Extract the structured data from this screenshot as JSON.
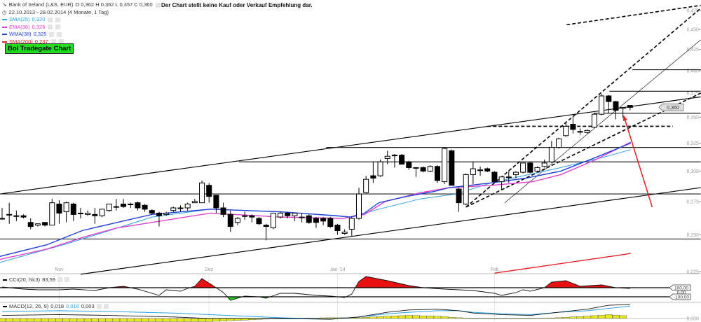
{
  "header": {
    "instrument": "Bank of Ireland (L&S, EUR)",
    "ohlc": "O 0,362  H 0,362  L 0,357  C 0,360",
    "range": "22.10.2013 - 28.02.2014 (4 Monate, 1 Tag)",
    "notice": "Der Chart stellt keine Kauf oder Verkauf Empfehlung dar.",
    "banner_button": "BoI Tradegate Chart"
  },
  "legend": [
    {
      "label": "SMA(25)",
      "value": "0,320",
      "color": "#2aa0e0"
    },
    {
      "label": "EMA(38)",
      "value": "0,326",
      "color": "#e040d0"
    },
    {
      "label": "WMA(38)",
      "value": "0,325",
      "color": "#2040d8"
    },
    {
      "label": "SMA(200)",
      "value": "0,237",
      "color": "#e02020"
    }
  ],
  "chart_data": {
    "type": "candlestick",
    "y_scale": "log",
    "ylim": [
      0.225,
      0.475
    ],
    "y_ticks": [
      {
        "value": 0.475,
        "label": "0,475"
      },
      {
        "value": 0.45,
        "label": "0,450"
      },
      {
        "value": 0.425,
        "label": "0,425"
      },
      {
        "value": 0.4,
        "label": "0,400"
      },
      {
        "value": 0.375,
        "label": "0,375"
      },
      {
        "value": 0.35,
        "label": "0,350"
      },
      {
        "value": 0.325,
        "label": "0,325"
      },
      {
        "value": 0.3,
        "label": "0,300"
      },
      {
        "value": 0.275,
        "label": "0,275"
      },
      {
        "value": 0.25,
        "label": "0,250"
      },
      {
        "value": 0.225,
        "label": "0,225"
      }
    ],
    "x_ticks": [
      {
        "index": 9,
        "label": "Nov"
      },
      {
        "index": 30,
        "label": "Dez"
      },
      {
        "index": 48,
        "label": "Jan '14"
      },
      {
        "index": 70,
        "label": "Feb"
      }
    ],
    "last_price": {
      "value": 0.36,
      "label": "0,360"
    },
    "candles_ohlc": [
      [
        0.262,
        0.27,
        0.261,
        0.262
      ],
      [
        0.265,
        0.274,
        0.258,
        0.265
      ],
      [
        0.264,
        0.268,
        0.26,
        0.264
      ],
      [
        0.264,
        0.265,
        0.262,
        0.263
      ],
      [
        0.259,
        0.262,
        0.254,
        0.256
      ],
      [
        0.257,
        0.258,
        0.256,
        0.258
      ],
      [
        0.259,
        0.259,
        0.256,
        0.257
      ],
      [
        0.257,
        0.277,
        0.257,
        0.274
      ],
      [
        0.273,
        0.276,
        0.258,
        0.266
      ],
      [
        0.267,
        0.275,
        0.259,
        0.274
      ],
      [
        0.273,
        0.274,
        0.26,
        0.265
      ],
      [
        0.266,
        0.27,
        0.262,
        0.266
      ],
      [
        0.265,
        0.268,
        0.264,
        0.266
      ],
      [
        0.265,
        0.27,
        0.258,
        0.264
      ],
      [
        0.264,
        0.269,
        0.263,
        0.269
      ],
      [
        0.268,
        0.273,
        0.267,
        0.273
      ],
      [
        0.271,
        0.277,
        0.268,
        0.271
      ],
      [
        0.273,
        0.277,
        0.27,
        0.271
      ],
      [
        0.273,
        0.274,
        0.27,
        0.273
      ],
      [
        0.274,
        0.275,
        0.268,
        0.27
      ],
      [
        0.272,
        0.273,
        0.267,
        0.269
      ],
      [
        0.268,
        0.269,
        0.265,
        0.266
      ],
      [
        0.266,
        0.267,
        0.256,
        0.264
      ],
      [
        0.265,
        0.267,
        0.264,
        0.266
      ],
      [
        0.268,
        0.271,
        0.267,
        0.27
      ],
      [
        0.27,
        0.272,
        0.267,
        0.27
      ],
      [
        0.27,
        0.274,
        0.268,
        0.273
      ],
      [
        0.274,
        0.277,
        0.274,
        0.275
      ],
      [
        0.274,
        0.292,
        0.274,
        0.29
      ],
      [
        0.288,
        0.29,
        0.274,
        0.279
      ],
      [
        0.28,
        0.28,
        0.266,
        0.27
      ],
      [
        0.27,
        0.274,
        0.263,
        0.265
      ],
      [
        0.265,
        0.268,
        0.252,
        0.256
      ],
      [
        0.259,
        0.263,
        0.257,
        0.262
      ],
      [
        0.264,
        0.267,
        0.261,
        0.264
      ],
      [
        0.264,
        0.265,
        0.259,
        0.263
      ],
      [
        0.262,
        0.263,
        0.257,
        0.258
      ],
      [
        0.257,
        0.258,
        0.246,
        0.256
      ],
      [
        0.255,
        0.266,
        0.254,
        0.266
      ],
      [
        0.263,
        0.267,
        0.262,
        0.266
      ],
      [
        0.266,
        0.267,
        0.262,
        0.264
      ],
      [
        0.264,
        0.266,
        0.26,
        0.266
      ],
      [
        0.263,
        0.266,
        0.259,
        0.263
      ],
      [
        0.264,
        0.265,
        0.258,
        0.259
      ],
      [
        0.262,
        0.263,
        0.255,
        0.259
      ],
      [
        0.262,
        0.263,
        0.257,
        0.26
      ],
      [
        0.262,
        0.263,
        0.255,
        0.256
      ],
      [
        0.257,
        0.258,
        0.25,
        0.253
      ],
      [
        0.251,
        0.254,
        0.25,
        0.252
      ],
      [
        0.254,
        0.263,
        0.249,
        0.262
      ],
      [
        0.262,
        0.286,
        0.261,
        0.281
      ],
      [
        0.282,
        0.296,
        0.281,
        0.293
      ],
      [
        0.296,
        0.308,
        0.29,
        0.294
      ],
      [
        0.296,
        0.31,
        0.295,
        0.308
      ],
      [
        0.311,
        0.318,
        0.306,
        0.313
      ],
      [
        0.314,
        0.315,
        0.303,
        0.314
      ],
      [
        0.314,
        0.315,
        0.306,
        0.306
      ],
      [
        0.308,
        0.309,
        0.301,
        0.303
      ],
      [
        0.303,
        0.303,
        0.295,
        0.303
      ],
      [
        0.303,
        0.304,
        0.299,
        0.3
      ],
      [
        0.3,
        0.305,
        0.299,
        0.304
      ],
      [
        0.304,
        0.305,
        0.29,
        0.292
      ],
      [
        0.291,
        0.321,
        0.289,
        0.32
      ],
      [
        0.318,
        0.319,
        0.288,
        0.288
      ],
      [
        0.285,
        0.286,
        0.267,
        0.274
      ],
      [
        0.273,
        0.298,
        0.272,
        0.297
      ],
      [
        0.297,
        0.308,
        0.289,
        0.302
      ],
      [
        0.301,
        0.304,
        0.296,
        0.301
      ],
      [
        0.302,
        0.303,
        0.299,
        0.3
      ],
      [
        0.299,
        0.3,
        0.29,
        0.291
      ],
      [
        0.291,
        0.295,
        0.284,
        0.295
      ],
      [
        0.295,
        0.3,
        0.29,
        0.295
      ],
      [
        0.297,
        0.3,
        0.294,
        0.299
      ],
      [
        0.299,
        0.307,
        0.298,
        0.307
      ],
      [
        0.307,
        0.308,
        0.298,
        0.299
      ],
      [
        0.3,
        0.304,
        0.299,
        0.303
      ],
      [
        0.304,
        0.31,
        0.303,
        0.307
      ],
      [
        0.308,
        0.327,
        0.307,
        0.321
      ],
      [
        0.321,
        0.33,
        0.32,
        0.329
      ],
      [
        0.332,
        0.344,
        0.331,
        0.341
      ],
      [
        0.343,
        0.351,
        0.334,
        0.338
      ],
      [
        0.336,
        0.339,
        0.333,
        0.336
      ],
      [
        0.335,
        0.338,
        0.334,
        0.337
      ],
      [
        0.34,
        0.354,
        0.339,
        0.353
      ],
      [
        0.353,
        0.374,
        0.352,
        0.372
      ],
      [
        0.372,
        0.373,
        0.354,
        0.366
      ],
      [
        0.366,
        0.367,
        0.348,
        0.357
      ],
      [
        0.359,
        0.36,
        0.349,
        0.36
      ],
      [
        0.362,
        0.362,
        0.357,
        0.36
      ]
    ],
    "overlays": [
      {
        "name": "SMA(25)",
        "color": "#2aa0e0",
        "points": [
          [
            0.7,
            0.231
          ],
          [
            9.6,
            0.243
          ],
          [
            15.4,
            0.252
          ],
          [
            22,
            0.263
          ],
          [
            30.2,
            0.269
          ],
          [
            40,
            0.267
          ],
          [
            49.8,
            0.263
          ],
          [
            53.8,
            0.269
          ],
          [
            59.6,
            0.277
          ],
          [
            64.6,
            0.281
          ],
          [
            69.5,
            0.29
          ],
          [
            79.3,
            0.303
          ],
          [
            85.2,
            0.312
          ],
          [
            89.1,
            0.319
          ]
        ]
      },
      {
        "name": "EMA(38)",
        "color": "#e040d0",
        "points": [
          [
            0.7,
            0.233
          ],
          [
            7.3,
            0.24
          ],
          [
            12.2,
            0.248
          ],
          [
            17.1,
            0.255
          ],
          [
            22,
            0.259
          ],
          [
            30.2,
            0.266
          ],
          [
            40,
            0.263
          ],
          [
            48.8,
            0.262
          ],
          [
            51.8,
            0.265
          ],
          [
            54.7,
            0.275
          ],
          [
            59.6,
            0.282
          ],
          [
            63.6,
            0.286
          ],
          [
            69.5,
            0.288
          ],
          [
            75.4,
            0.291
          ],
          [
            79.3,
            0.297
          ],
          [
            84.2,
            0.31
          ],
          [
            89.1,
            0.326
          ]
        ]
      },
      {
        "name": "WMA(38)",
        "color": "#2040d8",
        "points": [
          [
            0.7,
            0.235
          ],
          [
            7.3,
            0.243
          ],
          [
            12.2,
            0.253
          ],
          [
            17.1,
            0.259
          ],
          [
            22,
            0.265
          ],
          [
            30.2,
            0.269
          ],
          [
            40,
            0.267
          ],
          [
            47.9,
            0.264
          ],
          [
            49.8,
            0.263
          ],
          [
            51.8,
            0.266
          ],
          [
            53.8,
            0.274
          ],
          [
            57.7,
            0.279
          ],
          [
            61.6,
            0.283
          ],
          [
            63.6,
            0.286
          ],
          [
            69.5,
            0.29
          ],
          [
            74.4,
            0.294
          ],
          [
            79.3,
            0.3
          ],
          [
            84.2,
            0.312
          ],
          [
            89.1,
            0.325
          ]
        ]
      },
      {
        "name": "SMA(200)",
        "color": "#e02020",
        "points": [
          [
            70,
            0.224
          ],
          [
            89.1,
            0.237
          ]
        ]
      }
    ],
    "drawings": [
      {
        "kind": "trendline",
        "style": "solid",
        "points": [
          [
            0.7,
            0.281
          ],
          [
            98.9,
            0.371
          ]
        ]
      },
      {
        "kind": "trendline",
        "style": "solid",
        "points": [
          [
            12,
            0.2233
          ],
          [
            98.9,
            0.2861
          ]
        ]
      },
      {
        "kind": "horizontal",
        "style": "solid",
        "points": [
          [
            0.7,
            0.247
          ],
          [
            98.9,
            0.247
          ]
        ]
      },
      {
        "kind": "horizontal",
        "style": "solid",
        "points": [
          [
            0.7,
            0.281
          ],
          [
            98.9,
            0.281
          ]
        ]
      },
      {
        "kind": "horizontal",
        "style": "solid",
        "points": [
          [
            34.2,
            0.308
          ],
          [
            98.9,
            0.308
          ]
        ]
      },
      {
        "kind": "horizontal",
        "style": "solid",
        "points": [
          [
            46.4,
            0.321
          ],
          [
            98.9,
            0.321
          ]
        ]
      },
      {
        "kind": "horizontal",
        "style": "solid",
        "points": [
          [
            83.9,
            0.354
          ],
          [
            98.9,
            0.354
          ]
        ]
      },
      {
        "kind": "horizontal",
        "style": "solid",
        "points": [
          [
            86.1,
            0.377
          ],
          [
            98.9,
            0.377
          ]
        ]
      },
      {
        "kind": "horizontal",
        "style": "solid",
        "points": [
          [
            89.3,
            0.401
          ],
          [
            98.9,
            0.401
          ]
        ]
      },
      {
        "kind": "horizontal",
        "style": "dashed",
        "points": [
          [
            69,
            0.341
          ],
          [
            95,
            0.341
          ]
        ]
      },
      {
        "kind": "trendline",
        "style": "dashed",
        "points": [
          [
            80.1,
            0.456
          ],
          [
            98.9,
            0.482
          ]
        ]
      },
      {
        "kind": "trendline",
        "style": "dashed",
        "points": [
          [
            66,
            0.2706
          ],
          [
            98.9,
            0.478
          ]
        ]
      },
      {
        "kind": "trendline",
        "style": "dashed",
        "points": [
          [
            66,
            0.2706
          ],
          [
            98.9,
            0.375
          ]
        ]
      },
      {
        "kind": "trendline",
        "style": "thin",
        "points": [
          [
            71.4,
            0.2738
          ],
          [
            98.9,
            0.4367
          ]
        ]
      },
      {
        "kind": "arrow",
        "style": "red",
        "points": [
          [
            92.1,
            0.2706
          ],
          [
            88.1,
            0.3517
          ]
        ]
      }
    ],
    "cci": {
      "label": "CCI(20, hlc3)",
      "value": "83,59",
      "levels": [
        {
          "value": 100,
          "label": "100,00"
        },
        {
          "value": 0,
          "label": "0,00"
        },
        {
          "value": -100,
          "label": "-100,00"
        }
      ],
      "points": [
        [
          1,
          115
        ],
        [
          4,
          69
        ],
        [
          6,
          54
        ],
        [
          9,
          54
        ],
        [
          11,
          69
        ],
        [
          14,
          38
        ],
        [
          16,
          100
        ],
        [
          18,
          131
        ],
        [
          20,
          69
        ],
        [
          23,
          -69
        ],
        [
          24,
          54
        ],
        [
          26,
          23
        ],
        [
          27,
          85
        ],
        [
          28,
          131
        ],
        [
          29,
          300
        ],
        [
          31,
          100
        ],
        [
          32,
          -8
        ],
        [
          33,
          -177
        ],
        [
          35,
          -85
        ],
        [
          37,
          -100
        ],
        [
          38,
          -131
        ],
        [
          40,
          -23
        ],
        [
          42,
          -23
        ],
        [
          45,
          -69
        ],
        [
          47,
          -85
        ],
        [
          49,
          -115
        ],
        [
          50,
          -38
        ],
        [
          51,
          238
        ],
        [
          52,
          346
        ],
        [
          55,
          254
        ],
        [
          58,
          146
        ],
        [
          60,
          100
        ],
        [
          63,
          69
        ],
        [
          65,
          54
        ],
        [
          67,
          38
        ],
        [
          70,
          -23
        ],
        [
          71,
          -69
        ],
        [
          73,
          -8
        ],
        [
          74,
          54
        ],
        [
          75,
          23
        ],
        [
          77,
          100
        ],
        [
          78,
          223
        ],
        [
          80,
          254
        ],
        [
          82,
          131
        ],
        [
          85,
          162
        ],
        [
          87,
          100
        ],
        [
          89,
          84
        ]
      ]
    },
    "macd": {
      "label": "MACD(12, 26, 9)",
      "macd_value": "0,018",
      "signal_value": "0,016",
      "hist_value": "0,003",
      "zero_label": "0,000",
      "points": [
        [
          1,
          0.004,
          0.009
        ],
        [
          9,
          0.005,
          0.01
        ],
        [
          16,
          0.004,
          0.009
        ],
        [
          25,
          0.002,
          0.007
        ],
        [
          30,
          0.0,
          0.005
        ],
        [
          40,
          0.0,
          0.001
        ],
        [
          47,
          -0.001,
          -0.001
        ],
        [
          51,
          0.002,
          0.002
        ],
        [
          55,
          0.008,
          0.006
        ],
        [
          58,
          0.011,
          0.008
        ],
        [
          62,
          0.012,
          0.01
        ],
        [
          65,
          0.01,
          0.01
        ],
        [
          67,
          0.007,
          0.008
        ],
        [
          71,
          0.005,
          0.006
        ],
        [
          75,
          0.004,
          0.005
        ],
        [
          79,
          0.008,
          0.008
        ],
        [
          83,
          0.012,
          0.01
        ],
        [
          86,
          0.017,
          0.013
        ],
        [
          89,
          0.018,
          0.016
        ]
      ]
    }
  }
}
